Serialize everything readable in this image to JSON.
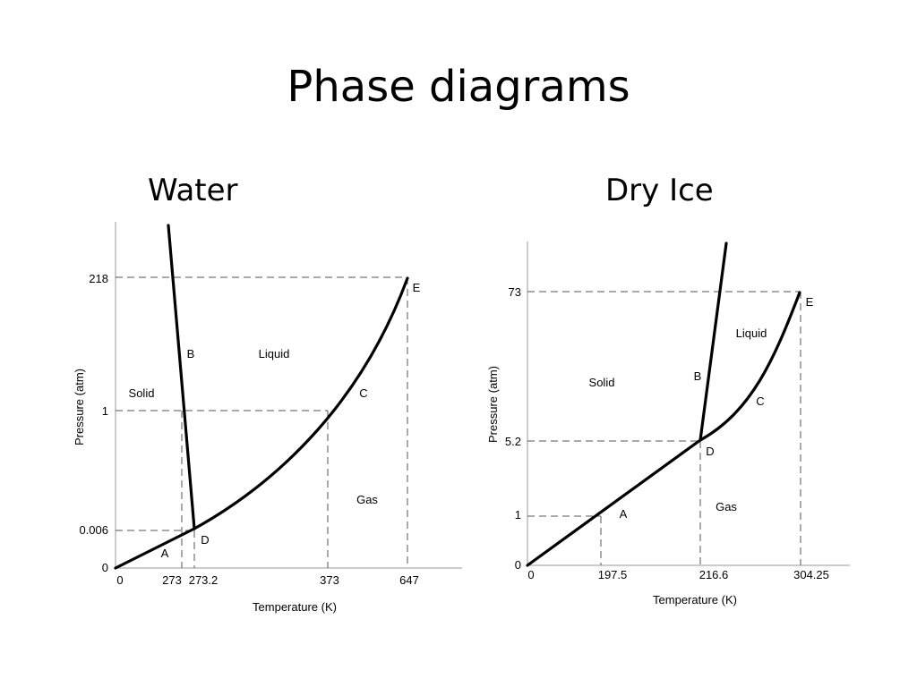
{
  "slide": {
    "title": "Phase diagrams"
  },
  "diagrams": [
    {
      "id": "water",
      "title": "Water",
      "xlabel": "Temperature (K)",
      "ylabel": "Pressure (atm)",
      "x_ticks": [
        "0",
        "273",
        "273.2",
        "373",
        "647"
      ],
      "y_ticks": [
        "0",
        "0.006",
        "1",
        "218"
      ],
      "regions": [
        "Solid",
        "Liquid",
        "Gas"
      ],
      "points": [
        "A",
        "B",
        "C",
        "D",
        "E"
      ]
    },
    {
      "id": "dry-ice",
      "title": "Dry Ice",
      "xlabel": "Temperature (K)",
      "ylabel": "Pressure (atm)",
      "x_ticks": [
        "0",
        "197.5",
        "216.6",
        "304.25"
      ],
      "y_ticks": [
        "0",
        "1",
        "5.2",
        "73"
      ],
      "regions": [
        "Solid",
        "Liquid",
        "Gas"
      ],
      "points": [
        "A",
        "B",
        "C",
        "D",
        "E"
      ]
    }
  ]
}
